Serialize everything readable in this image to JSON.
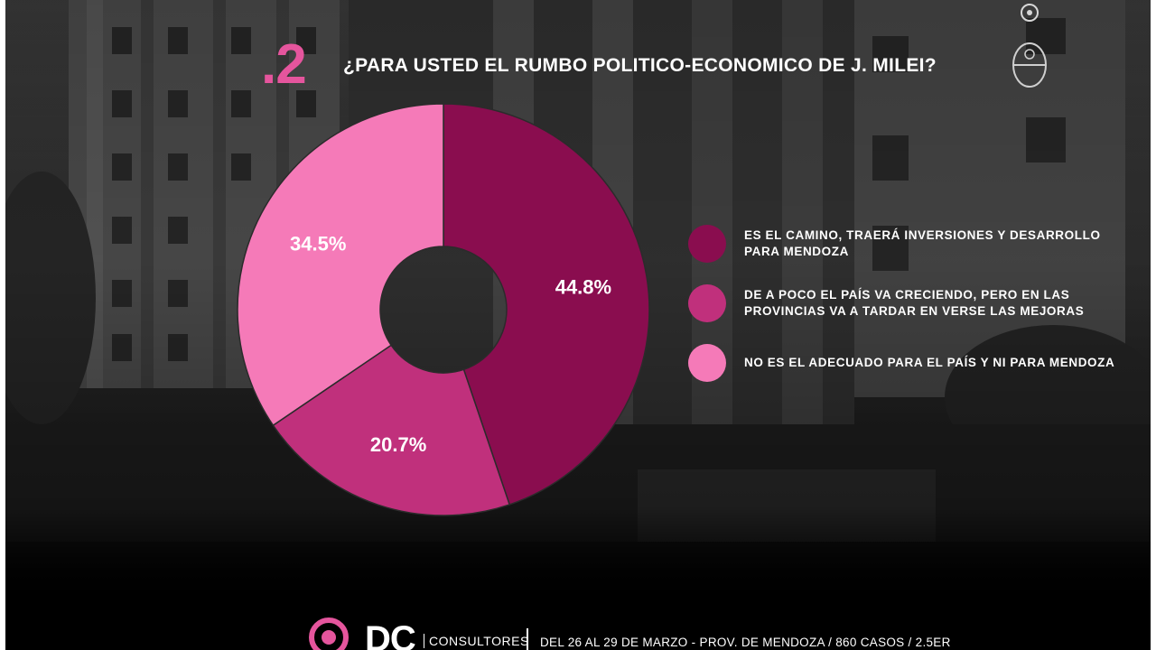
{
  "question": {
    "number": ".2",
    "title": "¿PARA USTED EL RUMBO POLITICO-ECONOMICO DE J. MILEI?"
  },
  "colors": {
    "accent": "#e5559d",
    "series_1": "#8a0d4f",
    "series_2": "#c0307c",
    "series_3": "#f57ab8",
    "label": "#ffffff"
  },
  "chart_data": {
    "type": "pie",
    "style": "donut",
    "title": "¿PARA USTED EL RUMBO POLITICO-ECONOMICO DE J. MILEI?",
    "categories": [
      "ES EL CAMINO, TRAERÁ INVERSIONES Y DESARROLLO PARA MENDOZA",
      "DE A POCO EL PAÍS VA CRECIENDO, PERO EN LAS PROVINCIAS VA A TARDAR EN VERSE LAS MEJORAS",
      "NO ES EL ADECUADO PARA EL PAÍS Y NI PARA MENDOZA"
    ],
    "values": [
      44.8,
      20.7,
      34.5
    ],
    "labels": [
      "44.8%",
      "20.7%",
      "34.5%"
    ],
    "colors": [
      "#8a0d4f",
      "#c0307c",
      "#f57ab8"
    ],
    "legend_position": "right"
  },
  "footer": {
    "brand": "DC",
    "brand_suffix": "CONSULTORES",
    "info": "DEL 26 AL 29 DE MARZO - PROV. DE MENDOZA / 860 CASOS / 2.5ER"
  }
}
